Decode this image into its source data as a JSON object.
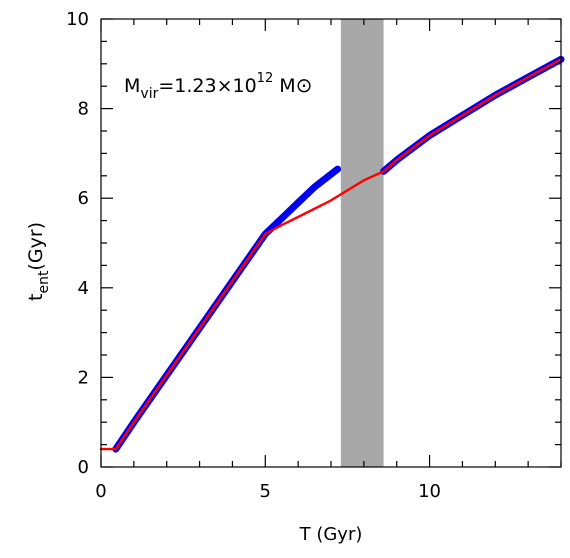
{
  "chart_data": {
    "type": "line",
    "title": "",
    "xlabel": "T (Gyr)",
    "ylabel": {
      "main": "t",
      "sub": "ent",
      "unit": "(Gyr)"
    },
    "xlim": [
      0,
      14
    ],
    "ylim": [
      0,
      10
    ],
    "x_ticks": [
      0,
      5,
      10
    ],
    "y_ticks": [
      0,
      2,
      4,
      6,
      8,
      10
    ],
    "grid": false,
    "annotation": {
      "pre": "M",
      "sub": "vir",
      "mid": "=1.23×10",
      "sup": "12",
      "post": " M",
      "symbol": "⊙"
    },
    "shaded_band": {
      "x0": 7.3,
      "x1": 8.6,
      "color": "#a8a8a8"
    },
    "series": [
      {
        "color": "#0000ee",
        "segments": [
          [
            [
              0.45,
              0.4
            ],
            [
              1.0,
              1.0
            ],
            [
              2.0,
              2.05
            ],
            [
              3.0,
              3.1
            ],
            [
              4.0,
              4.15
            ],
            [
              5.0,
              5.2
            ],
            [
              5.5,
              5.55
            ],
            [
              6.0,
              5.9
            ],
            [
              6.5,
              6.25
            ],
            [
              7.2,
              6.65
            ]
          ],
          [
            [
              8.6,
              6.6
            ],
            [
              9.0,
              6.85
            ],
            [
              10.0,
              7.4
            ],
            [
              11.0,
              7.85
            ],
            [
              12.0,
              8.3
            ],
            [
              13.0,
              8.7
            ],
            [
              14.0,
              9.1
            ]
          ]
        ]
      },
      {
        "color": "#ff0000",
        "segments": [
          [
            [
              0.0,
              0.4
            ],
            [
              0.45,
              0.4
            ],
            [
              1.0,
              1.0
            ],
            [
              2.0,
              2.05
            ],
            [
              3.0,
              3.1
            ],
            [
              4.0,
              4.15
            ],
            [
              5.0,
              5.2
            ],
            [
              5.5,
              5.4
            ],
            [
              6.0,
              5.58
            ],
            [
              7.0,
              5.95
            ],
            [
              8.0,
              6.4
            ],
            [
              8.6,
              6.6
            ],
            [
              9.0,
              6.85
            ],
            [
              10.0,
              7.4
            ],
            [
              11.0,
              7.85
            ],
            [
              12.0,
              8.3
            ],
            [
              13.0,
              8.7
            ],
            [
              14.0,
              9.1
            ]
          ]
        ]
      }
    ],
    "colors": {
      "axis": "#000000",
      "blue_series": "#0000ee",
      "red_series": "#ff0000",
      "band": "#a8a8a8"
    }
  }
}
